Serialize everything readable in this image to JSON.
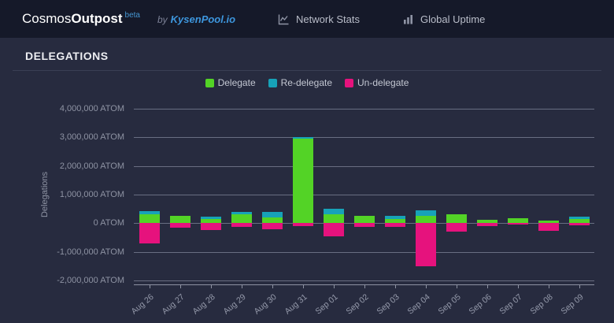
{
  "navbar": {
    "brand": {
      "prefix": "Cosmos",
      "suffix": "Outpost",
      "beta_label": "beta"
    },
    "byline": {
      "by_label": "by",
      "org_name": "KysenPool.io"
    },
    "items": [
      {
        "label": "Network Stats",
        "icon": "line-chart-icon"
      },
      {
        "label": "Global Uptime",
        "icon": "bar-chart-icon"
      }
    ]
  },
  "section": {
    "title": "DELEGATIONS"
  },
  "chart_data": {
    "type": "bar",
    "stacked": true,
    "title": "",
    "ylabel": "Delegations",
    "ytick_suffix": " ATOM",
    "ylim": [
      -2000000,
      4000000
    ],
    "ytick_step": 1000000,
    "grid": true,
    "legend_position": "top",
    "categories": [
      "Aug 26",
      "Aug 27",
      "Aug 28",
      "Aug 29",
      "Aug 30",
      "Aug 31",
      "Sep 01",
      "Sep 02",
      "Sep 03",
      "Sep 04",
      "Sep 05",
      "Sep 06",
      "Sep 07",
      "Sep 08",
      "Sep 09"
    ],
    "series": [
      {
        "name": "Delegate",
        "color": "#53d326",
        "values": [
          300000,
          250000,
          150000,
          300000,
          200000,
          2950000,
          300000,
          250000,
          150000,
          250000,
          300000,
          120000,
          180000,
          100000,
          150000
        ]
      },
      {
        "name": "Re-delegate",
        "color": "#17a2b8",
        "values": [
          120000,
          0,
          80000,
          100000,
          200000,
          50000,
          200000,
          0,
          120000,
          200000,
          0,
          0,
          0,
          0,
          70000
        ]
      },
      {
        "name": "Un-delegate",
        "color": "#e6127d",
        "values": [
          -700000,
          -150000,
          -250000,
          -120000,
          -200000,
          -100000,
          -450000,
          -120000,
          -120000,
          -1500000,
          -300000,
          -100000,
          -50000,
          -280000,
          -80000
        ]
      }
    ]
  }
}
